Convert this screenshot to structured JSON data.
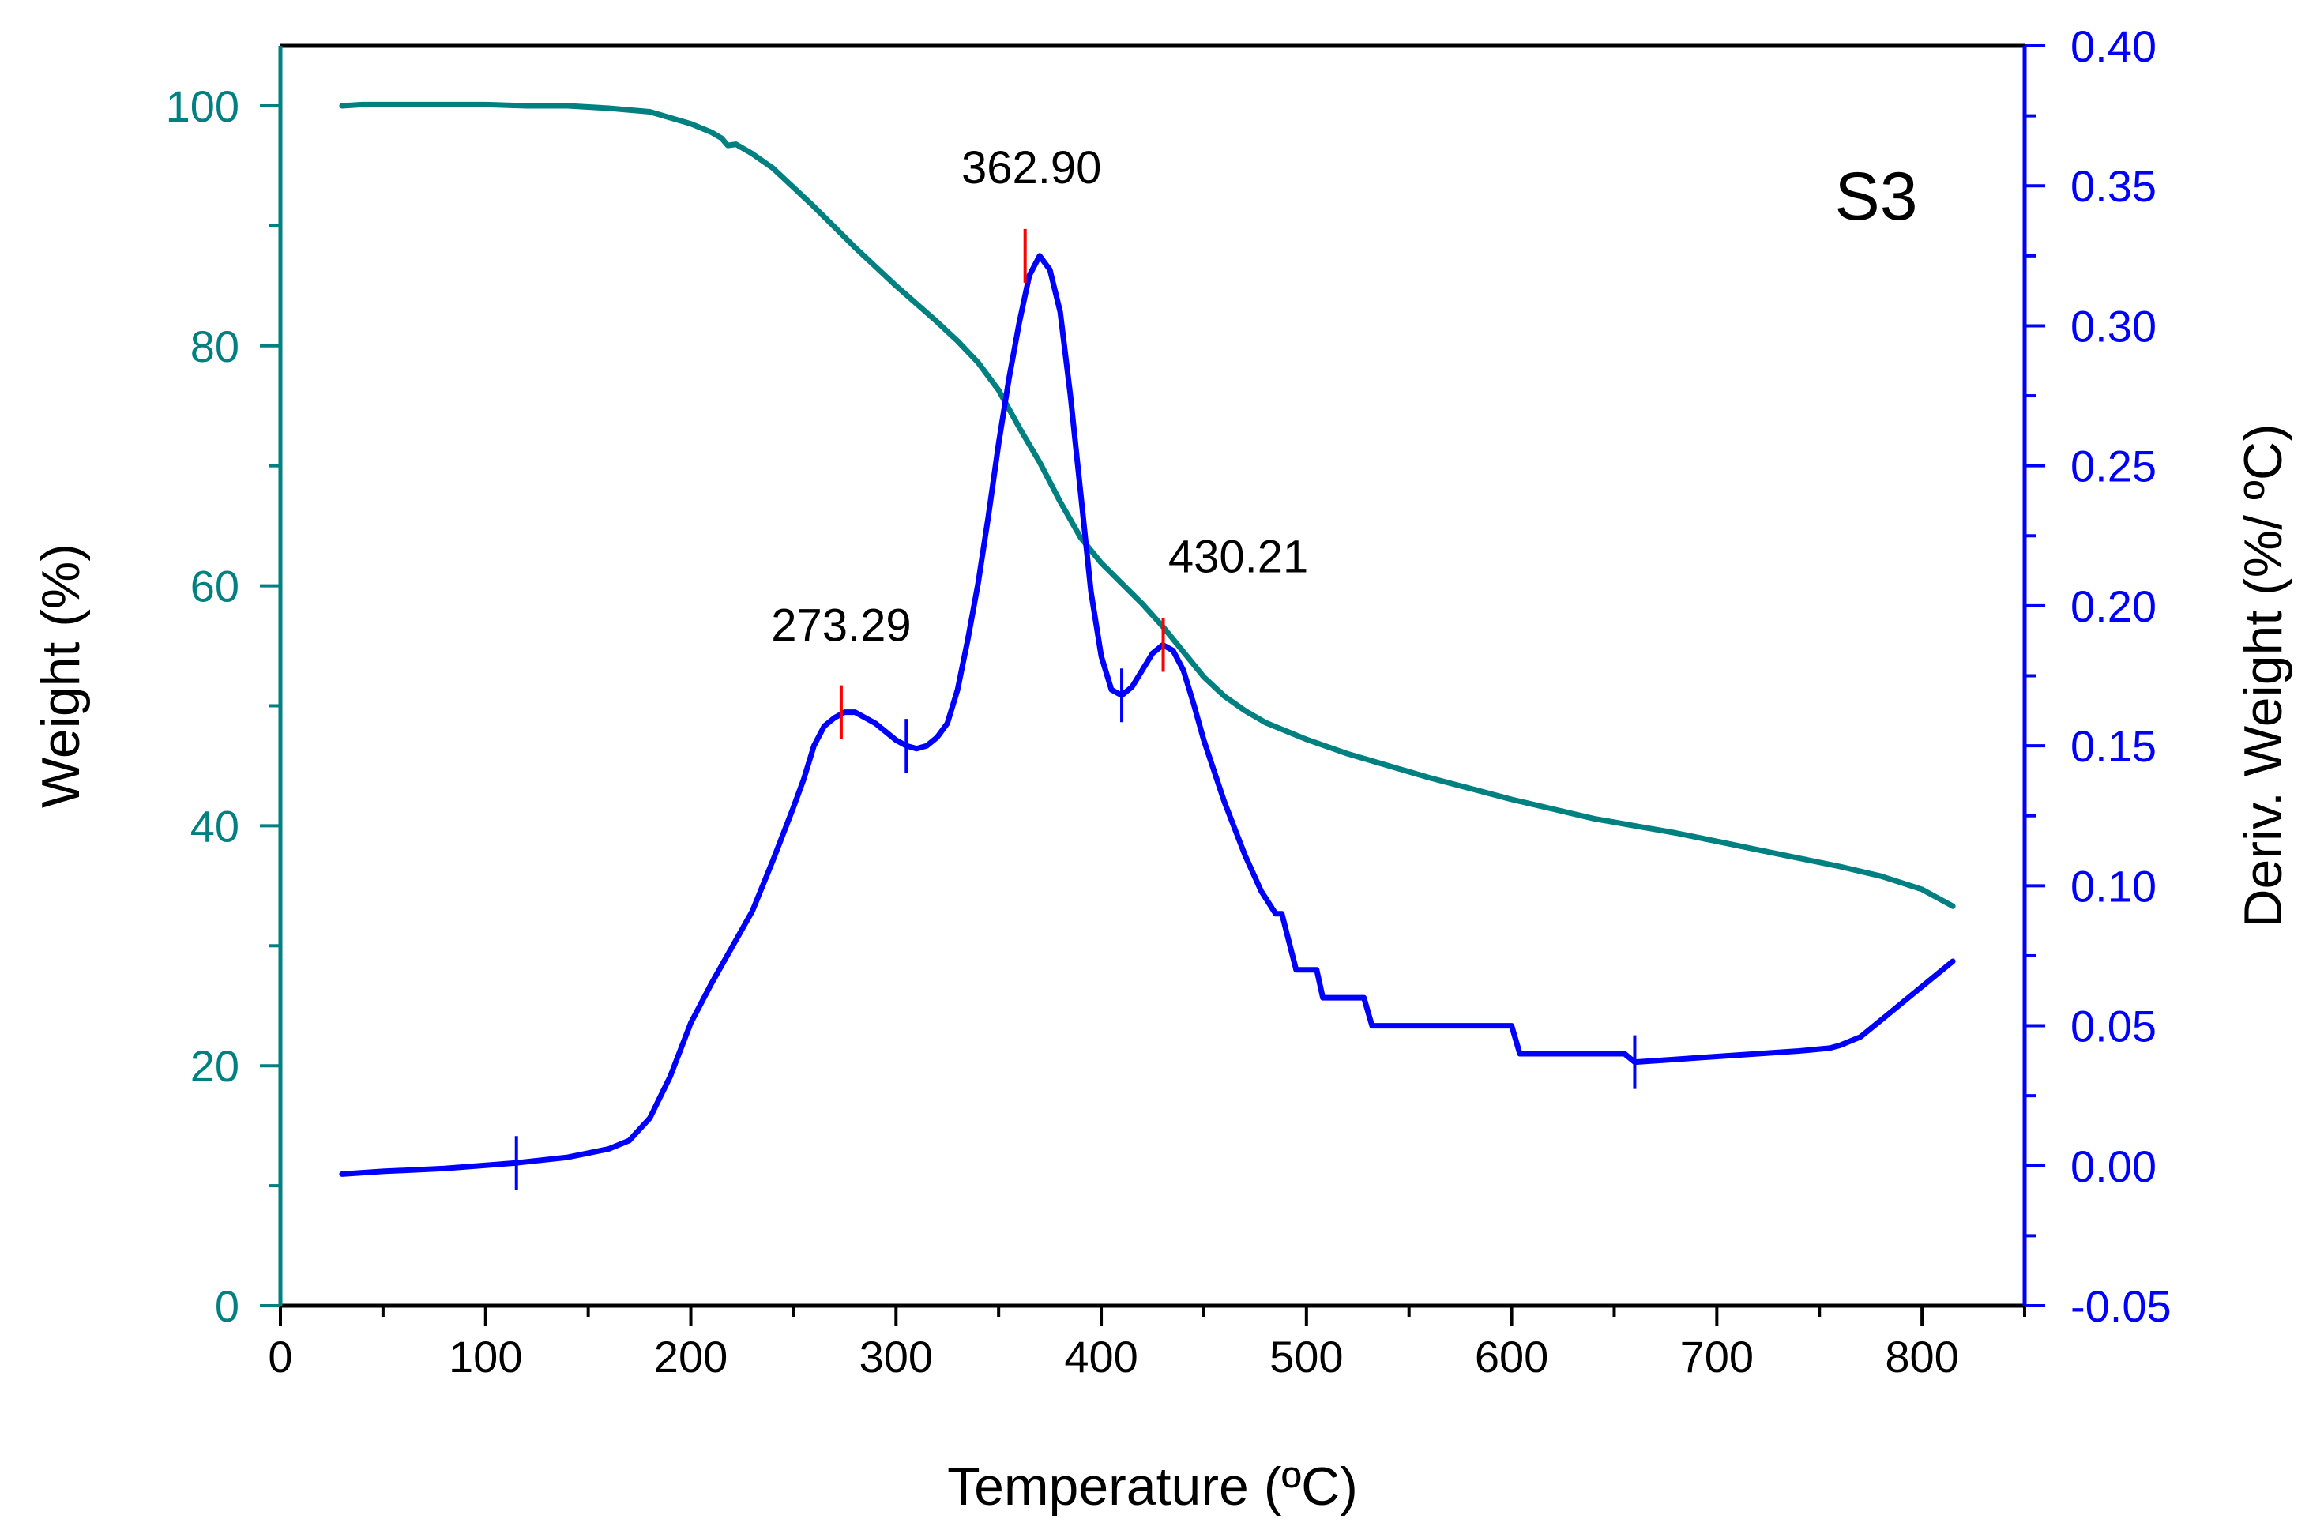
{
  "chart_data": {
    "type": "line",
    "panel_label": "S3",
    "xlabel": "Temperature (ºC)",
    "ylabel_left": "Weight (%)",
    "ylabel_right": "Deriv. Weight (%/ ºC)",
    "xlim": [
      0,
      850
    ],
    "ylim_left": [
      0,
      105
    ],
    "ylim_right": [
      -0.05,
      0.4
    ],
    "x_ticks": [
      "0",
      "100",
      "200",
      "300",
      "400",
      "500",
      "600",
      "700",
      "800"
    ],
    "y_left_ticks": [
      "0",
      "20",
      "40",
      "60",
      "80",
      "100"
    ],
    "y_right_ticks": [
      "-0.05",
      "0.00",
      "0.05",
      "0.10",
      "0.15",
      "0.20",
      "0.25",
      "0.30",
      "0.35",
      "0.40"
    ],
    "colors": {
      "weight": "#008080",
      "deriv": "#0000ff",
      "peak_marker": "#ff0000",
      "frame": "#000000"
    },
    "series": [
      {
        "name": "Weight",
        "axis": "left",
        "x": [
          30,
          40,
          60,
          80,
          100,
          120,
          140,
          160,
          180,
          190,
          200,
          210,
          215,
          218,
          222,
          230,
          240,
          250,
          260,
          270,
          280,
          290,
          300,
          310,
          320,
          330,
          340,
          350,
          360,
          370,
          380,
          390,
          400,
          410,
          420,
          430,
          440,
          450,
          460,
          470,
          480,
          500,
          520,
          540,
          560,
          580,
          600,
          620,
          640,
          660,
          680,
          700,
          720,
          740,
          760,
          780,
          800,
          815
        ],
        "values": [
          100,
          100.1,
          100.1,
          100.1,
          100.1,
          100,
          100,
          99.8,
          99.5,
          99,
          98.5,
          97.8,
          97.3,
          96.7,
          96.8,
          96,
          94.8,
          93.2,
          91.6,
          89.9,
          88.2,
          86.6,
          85.0,
          83.5,
          82.0,
          80.4,
          78.6,
          76.3,
          73.2,
          70.3,
          67.0,
          64.0,
          61.9,
          60.2,
          58.5,
          56.6,
          54.5,
          52.4,
          50.8,
          49.6,
          48.6,
          47.2,
          46.0,
          45.0,
          44.0,
          43.1,
          42.2,
          41.4,
          40.6,
          40.0,
          39.4,
          38.7,
          38.0,
          37.3,
          36.6,
          35.8,
          34.7,
          33.3
        ]
      },
      {
        "name": "Deriv. Weight",
        "axis": "right",
        "x": [
          30,
          50,
          80,
          115,
          140,
          160,
          170,
          180,
          190,
          200,
          210,
          220,
          230,
          240,
          250,
          255,
          260,
          265,
          270,
          275,
          280,
          285,
          290,
          295,
          300,
          305,
          310,
          315,
          320,
          325,
          330,
          335,
          340,
          345,
          350,
          355,
          360,
          365,
          370,
          375,
          380,
          385,
          390,
          395,
          400,
          405,
          410,
          415,
          420,
          425,
          430,
          435,
          440,
          445,
          450,
          460,
          470,
          478,
          485,
          488,
          495,
          505,
          508,
          528,
          532,
          600,
          604,
          655,
          660,
          680,
          700,
          720,
          740,
          755,
          760,
          770,
          780,
          790,
          800,
          815
        ],
        "values": [
          -0.003,
          -0.002,
          -0.001,
          0.001,
          0.003,
          0.006,
          0.009,
          0.017,
          0.032,
          0.051,
          0.065,
          0.078,
          0.091,
          0.109,
          0.128,
          0.138,
          0.15,
          0.157,
          0.16,
          0.162,
          0.162,
          0.16,
          0.158,
          0.155,
          0.152,
          0.15,
          0.149,
          0.15,
          0.153,
          0.158,
          0.17,
          0.188,
          0.208,
          0.232,
          0.258,
          0.281,
          0.301,
          0.318,
          0.325,
          0.32,
          0.305,
          0.275,
          0.24,
          0.205,
          0.182,
          0.17,
          0.168,
          0.171,
          0.177,
          0.183,
          0.186,
          0.184,
          0.177,
          0.165,
          0.152,
          0.13,
          0.111,
          0.098,
          0.09,
          0.09,
          0.07,
          0.07,
          0.06,
          0.06,
          0.05,
          0.05,
          0.04,
          0.04,
          0.037,
          0.038,
          0.039,
          0.04,
          0.041,
          0.042,
          0.043,
          0.046,
          0.052,
          0.058,
          0.064,
          0.073
        ]
      }
    ],
    "peak_annotations": [
      {
        "label": "273.29",
        "x": 273.29,
        "y": 0.162
      },
      {
        "label": "362.90",
        "x": 362.9,
        "y": 0.325
      },
      {
        "label": "430.21",
        "x": 430.21,
        "y": 0.186
      }
    ],
    "boundary_markers": [
      {
        "x": 115,
        "y": 0.001
      },
      {
        "x": 305,
        "y": 0.15
      },
      {
        "x": 410,
        "y": 0.168
      },
      {
        "x": 660,
        "y": 0.037
      }
    ]
  }
}
